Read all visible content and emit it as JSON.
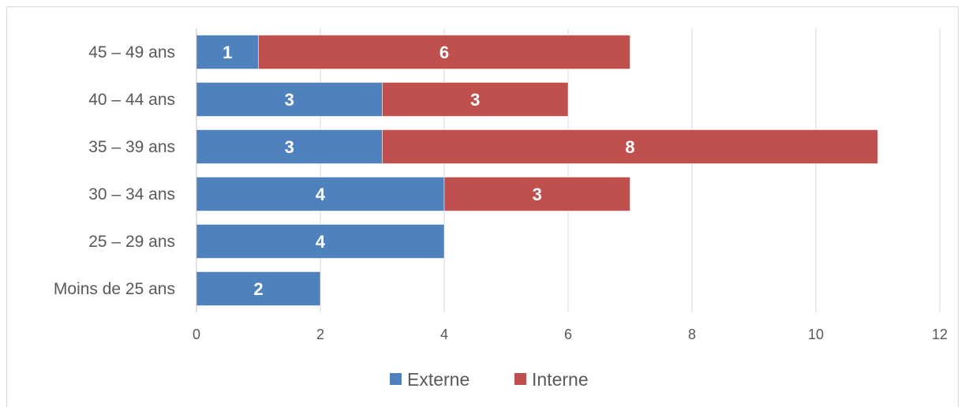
{
  "chart_data": {
    "type": "bar",
    "orientation": "horizontal",
    "stacked": true,
    "categories": [
      "Moins de 25 ans",
      "25 – 29 ans",
      "30 – 34 ans",
      "35 – 39 ans",
      "40 – 44 ans",
      "45 – 49 ans"
    ],
    "series": [
      {
        "name": "Externe",
        "color": "#4f81bd",
        "values": [
          2,
          4,
          4,
          3,
          3,
          1
        ]
      },
      {
        "name": "Interne",
        "color": "#c0504d",
        "values": [
          0,
          0,
          3,
          8,
          3,
          6
        ]
      }
    ],
    "xlim": [
      0,
      12
    ],
    "xticks": [
      0,
      2,
      4,
      6,
      8,
      10,
      12
    ],
    "grid": true,
    "legend_position": "bottom",
    "data_labels": true
  }
}
